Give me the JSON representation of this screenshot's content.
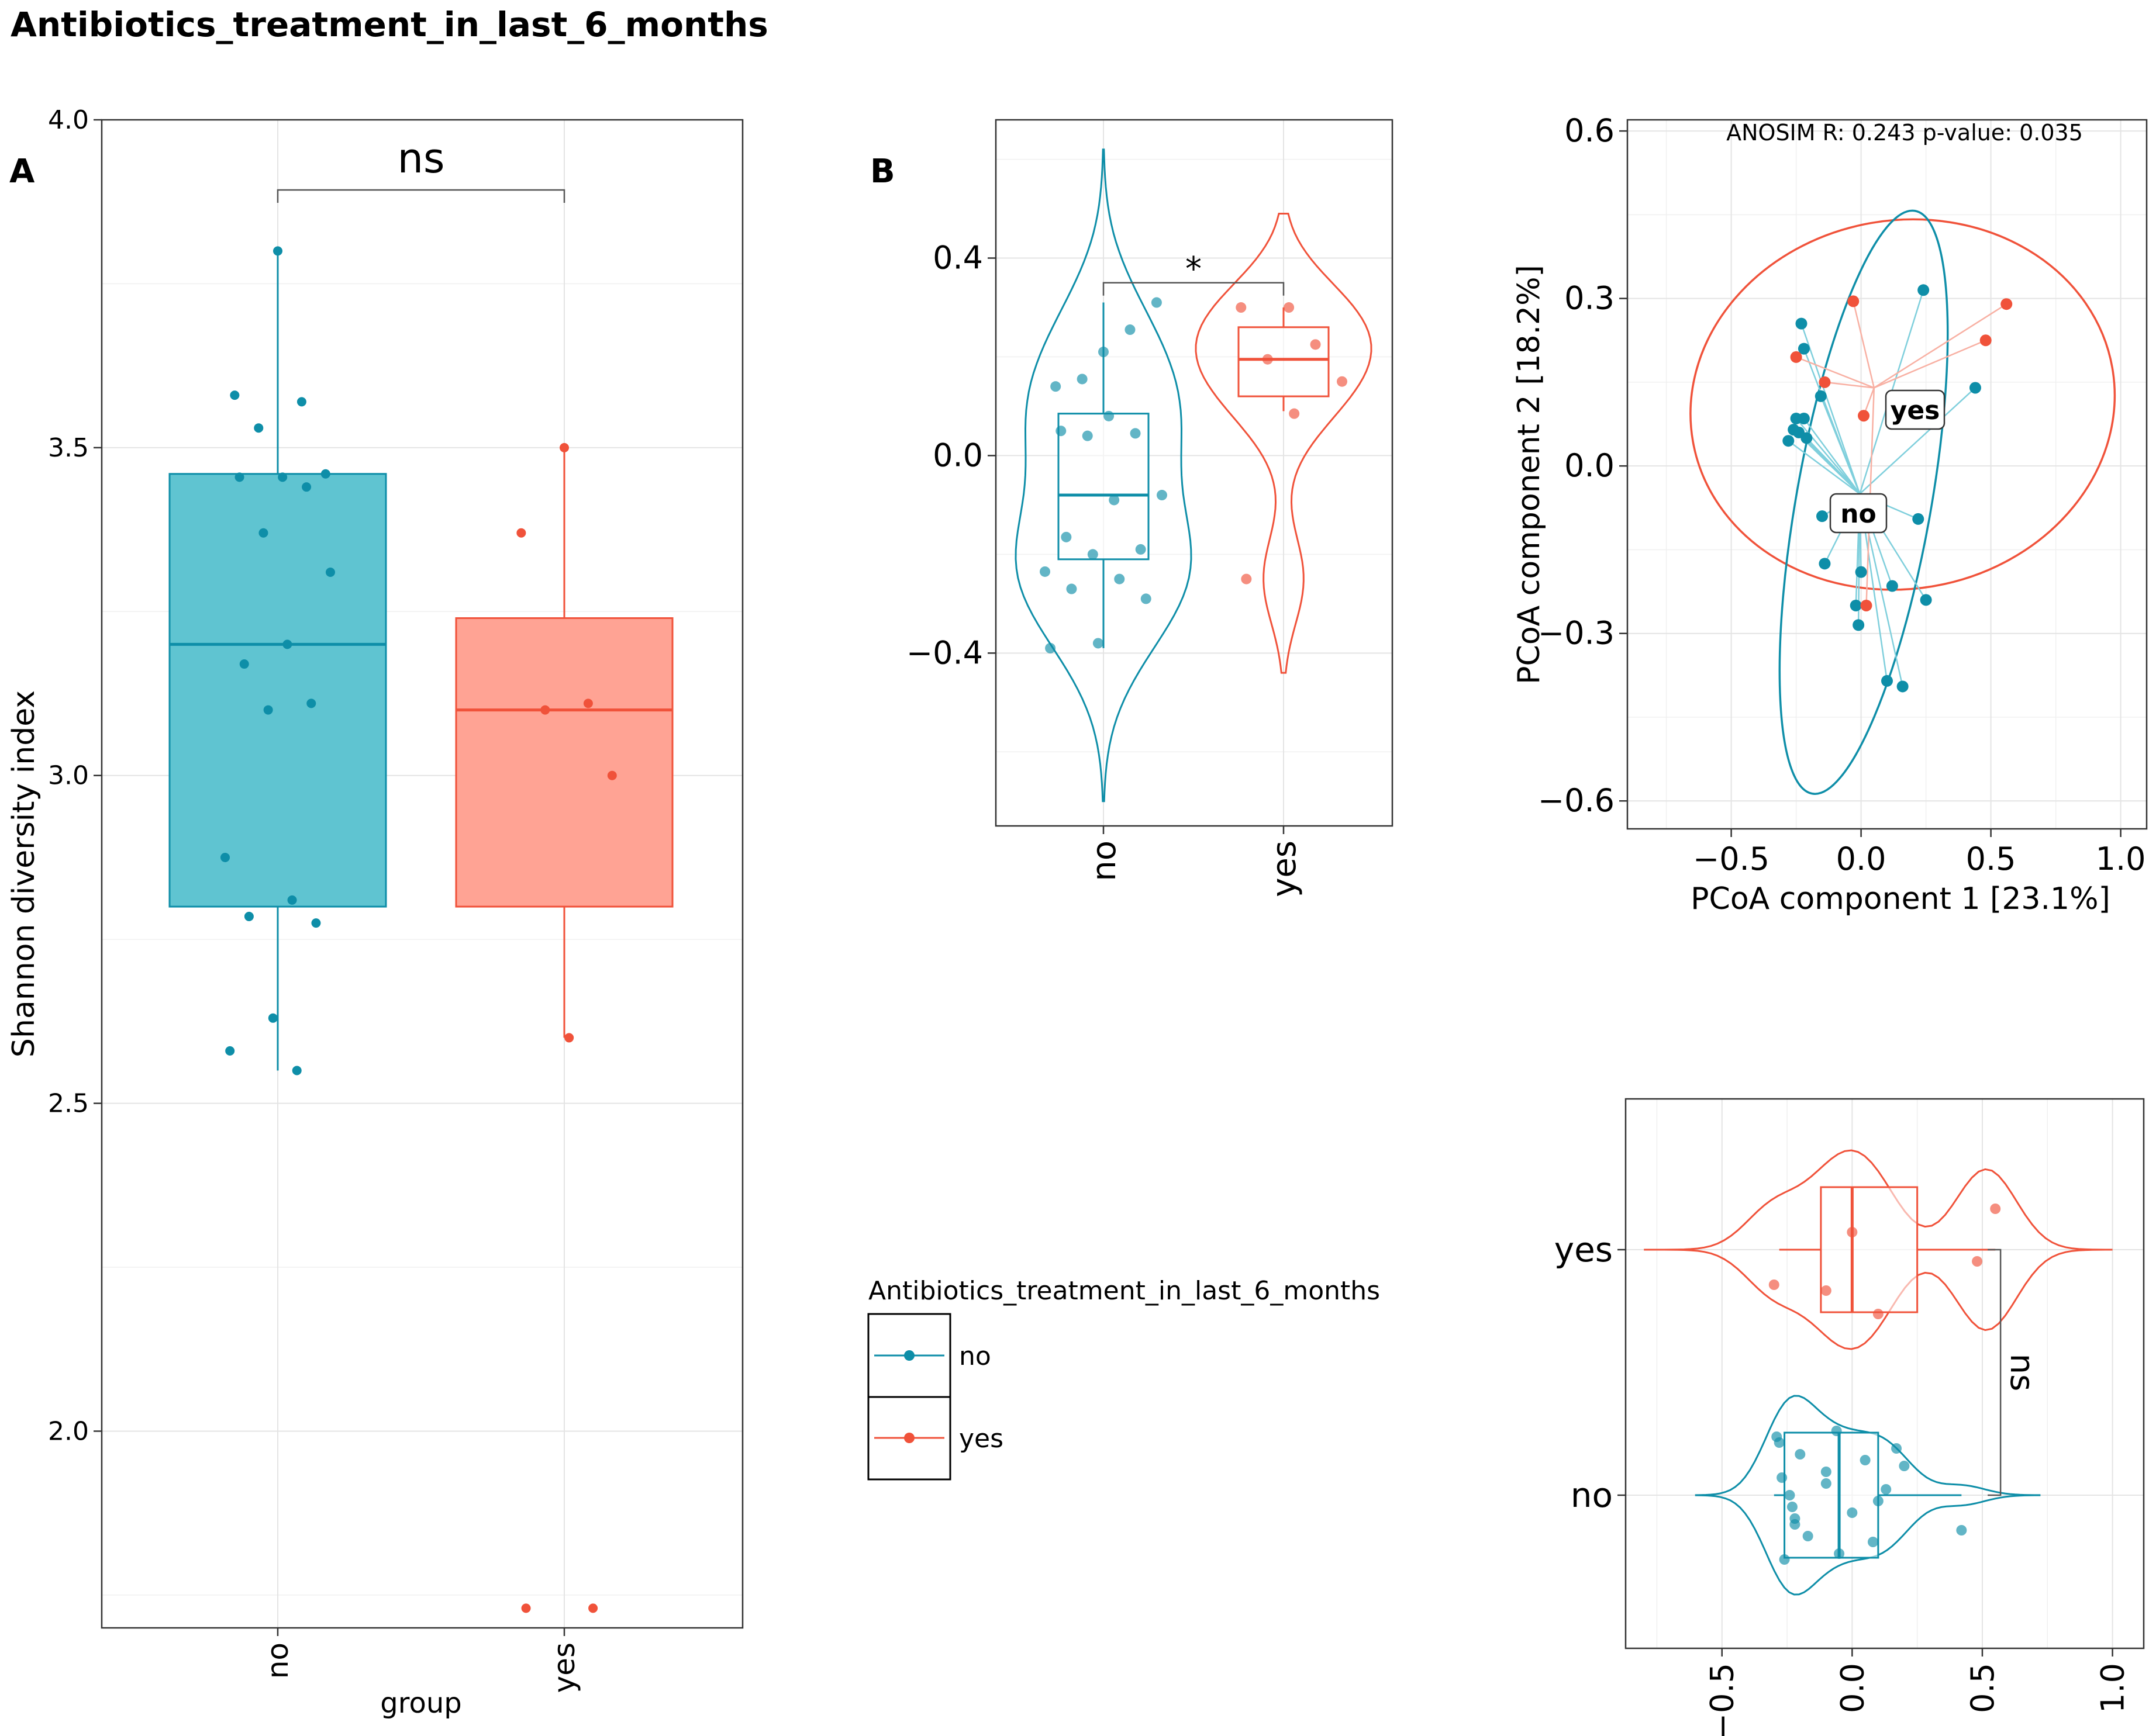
{
  "title": "Antibiotics_treatment_in_last_6_months",
  "colors": {
    "no": "#0e8ea8",
    "yes": "#f0523a",
    "no_fill": "#5fc4d1",
    "yes_fill": "#ffa394"
  },
  "chart_data": [
    {
      "id": "A",
      "type": "box",
      "panel_label": "A",
      "xlabel": "group",
      "ylabel": "Shannon diversity index",
      "categories": [
        "no",
        "yes"
      ],
      "ylim": [
        1.7,
        4.0
      ],
      "yticks": [
        "2.0",
        "2.5",
        "3.0",
        "3.5",
        "4.0"
      ],
      "significance": "ns",
      "boxes": [
        {
          "group": "no",
          "q1": 2.8,
          "median": 3.2,
          "q3": 3.46,
          "whisker_low": 2.55,
          "whisker_high": 3.8
        },
        {
          "group": "yes",
          "q1": 2.8,
          "median": 3.1,
          "q3": 3.24,
          "whisker_low": 2.6,
          "whisker_high": 3.5
        }
      ],
      "points": {
        "no": [
          3.8,
          3.58,
          3.57,
          3.53,
          3.46,
          3.455,
          3.455,
          3.44,
          3.37,
          3.31,
          3.2,
          3.17,
          3.11,
          3.1,
          2.875,
          2.81,
          2.785,
          2.775,
          2.63,
          2.58,
          2.55
        ],
        "yes": [
          3.5,
          3.37,
          3.11,
          3.1,
          3.0,
          2.6,
          1.73,
          1.73
        ]
      }
    },
    {
      "id": "B",
      "type": "violin",
      "panel_label": "B",
      "categories": [
        "no",
        "yes"
      ],
      "ylim": [
        -0.75,
        0.68
      ],
      "yticks": [
        "-0.4",
        "0.0",
        "0.4"
      ],
      "significance": "*",
      "boxes": [
        {
          "group": "no",
          "q1": -0.21,
          "median": -0.08,
          "q3": 0.085,
          "whisker_low": -0.39,
          "whisker_high": 0.31
        },
        {
          "group": "yes",
          "q1": 0.12,
          "median": 0.195,
          "q3": 0.26,
          "whisker_low": 0.09,
          "whisker_high": 0.3
        }
      ],
      "points": {
        "no": [
          0.21,
          0.14,
          0.255,
          0.155,
          0.31,
          0.08,
          0.05,
          0.045,
          0.04,
          -0.08,
          -0.09,
          -0.165,
          -0.19,
          -0.2,
          -0.235,
          -0.25,
          -0.27,
          -0.29,
          -0.38,
          -0.39
        ],
        "yes": [
          0.3,
          0.3,
          0.225,
          0.195,
          0.15,
          0.085,
          -0.25
        ]
      }
    },
    {
      "id": "C",
      "type": "scatter",
      "title": "ANOSIM R: 0.243 p-value: 0.035",
      "xlabel": "PCoA component 1 [23.1%]",
      "ylabel": "PCoA component 2 [18.2%]",
      "xlim": [
        -0.9,
        1.1
      ],
      "ylim": [
        -0.65,
        0.62
      ],
      "xticks": [
        "-0.5",
        "0.0",
        "0.5",
        "1.0"
      ],
      "yticks": [
        "-0.6",
        "-0.3",
        "0.0",
        "0.3",
        "0.6"
      ],
      "centroids": {
        "no": [
          -0.005,
          -0.05
        ],
        "yes": [
          0.05,
          0.14
        ]
      },
      "points": {
        "no": [
          [
            -0.23,
            0.255
          ],
          [
            -0.22,
            0.21
          ],
          [
            -0.155,
            0.125
          ],
          [
            -0.25,
            0.085
          ],
          [
            -0.22,
            0.085
          ],
          [
            -0.26,
            0.065
          ],
          [
            -0.24,
            0.06
          ],
          [
            -0.21,
            0.05
          ],
          [
            -0.28,
            0.045
          ],
          [
            -0.15,
            -0.09
          ],
          [
            0.24,
            0.315
          ],
          [
            0.44,
            0.14
          ],
          [
            0.22,
            -0.095
          ],
          [
            -0.14,
            -0.175
          ],
          [
            0.0,
            -0.19
          ],
          [
            0.12,
            -0.215
          ],
          [
            0.25,
            -0.24
          ],
          [
            -0.02,
            -0.25
          ],
          [
            -0.01,
            -0.285
          ],
          [
            0.1,
            -0.385
          ],
          [
            0.16,
            -0.395
          ]
        ],
        "yes": [
          [
            -0.03,
            0.295
          ],
          [
            -0.25,
            0.195
          ],
          [
            -0.14,
            0.15
          ],
          [
            0.01,
            0.09
          ],
          [
            0.48,
            0.225
          ],
          [
            0.56,
            0.29
          ],
          [
            0.02,
            -0.25
          ]
        ]
      },
      "ellipses": {
        "no": {
          "cx": 0.01,
          "cy": -0.065,
          "rx": 0.26,
          "ry": 0.53,
          "angle": 10
        },
        "yes": {
          "cx": 0.16,
          "cy": 0.11,
          "rx": 0.82,
          "ry": 0.33,
          "angle": -10
        }
      }
    },
    {
      "id": "D",
      "type": "violin",
      "orientation": "horizontal",
      "categories": [
        "no",
        "yes"
      ],
      "xlim": [
        -0.87,
        1.12
      ],
      "xticks": [
        "-0.5",
        "0.0",
        "0.5",
        "1.0"
      ],
      "significance": "ns",
      "boxes": [
        {
          "group": "no",
          "q1": -0.26,
          "median": -0.05,
          "q3": 0.1,
          "whisker_low": -0.3,
          "whisker_high": 0.42
        },
        {
          "group": "yes",
          "q1": -0.12,
          "median": 0.0,
          "q3": 0.25,
          "whisker_low": -0.28,
          "whisker_high": 0.55
        }
      ],
      "points": {
        "no": [
          -0.24,
          -0.28,
          -0.22,
          -0.1,
          -0.05,
          0.1,
          0.17,
          0.42,
          -0.27,
          -0.26,
          -0.23,
          -0.2,
          -0.17,
          -0.1,
          -0.06,
          0.0,
          0.05,
          0.08,
          0.13,
          -0.29,
          -0.22,
          0.2
        ],
        "yes": [
          -0.3,
          0.0,
          0.1,
          0.48,
          0.55,
          -0.1
        ]
      }
    }
  ],
  "legend": {
    "title": "Antibiotics_treatment_in_last_6_months",
    "items": [
      {
        "label": "no",
        "group": "no"
      },
      {
        "label": "yes",
        "group": "yes"
      }
    ]
  },
  "panelC_labels": {
    "no": "no",
    "yes": "yes"
  }
}
